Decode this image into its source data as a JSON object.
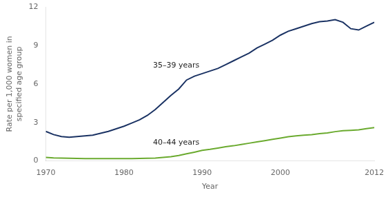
{
  "chart_data": {
    "type": "line",
    "xlabel": "Year",
    "ylabel": "Rate per 1,000 women in\nspecified age group",
    "x": [
      1970,
      1971,
      1972,
      1973,
      1974,
      1975,
      1976,
      1977,
      1978,
      1979,
      1980,
      1981,
      1982,
      1983,
      1984,
      1985,
      1986,
      1987,
      1988,
      1989,
      1990,
      1991,
      1992,
      1993,
      1994,
      1995,
      1996,
      1997,
      1998,
      1999,
      2000,
      2001,
      2002,
      2003,
      2004,
      2005,
      2006,
      2007,
      2008,
      2009,
      2010,
      2011,
      2012
    ],
    "series": [
      {
        "name": "35–39 years",
        "color": "#1a3263",
        "values": [
          2.3,
          2.05,
          1.9,
          1.85,
          1.9,
          1.95,
          2.0,
          2.15,
          2.3,
          2.5,
          2.7,
          2.95,
          3.2,
          3.55,
          4.0,
          4.55,
          5.1,
          5.6,
          6.3,
          6.6,
          6.8,
          7.0,
          7.2,
          7.5,
          7.8,
          8.1,
          8.4,
          8.8,
          9.1,
          9.4,
          9.8,
          10.1,
          10.3,
          10.5,
          10.7,
          10.85,
          10.9,
          11.0,
          10.8,
          10.3,
          10.2,
          10.5,
          10.8
        ]
      },
      {
        "name": "40–44 years",
        "color": "#6aaa2e",
        "values": [
          0.28,
          0.24,
          0.22,
          0.2,
          0.19,
          0.18,
          0.18,
          0.18,
          0.18,
          0.18,
          0.18,
          0.18,
          0.19,
          0.2,
          0.22,
          0.27,
          0.33,
          0.42,
          0.55,
          0.68,
          0.82,
          0.9,
          1.0,
          1.1,
          1.18,
          1.28,
          1.38,
          1.48,
          1.58,
          1.68,
          1.78,
          1.88,
          1.95,
          2.0,
          2.05,
          2.12,
          2.18,
          2.28,
          2.35,
          2.38,
          2.42,
          2.52,
          2.6
        ]
      }
    ],
    "xlim": [
      1970,
      2012
    ],
    "ylim": [
      0,
      12
    ],
    "xticks": [
      1970,
      1980,
      1990,
      2000,
      2012
    ],
    "yticks": [
      0,
      3,
      6,
      9,
      12
    ],
    "grid": false
  }
}
